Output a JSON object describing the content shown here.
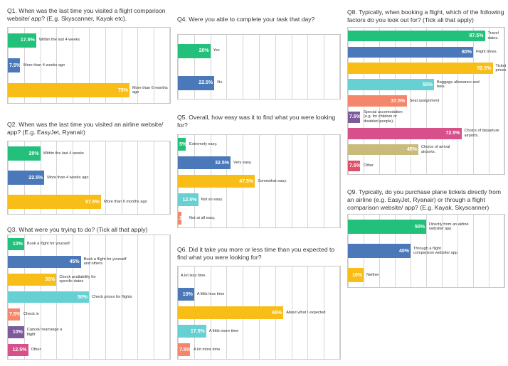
{
  "chart_data": [
    {
      "type": "bar",
      "orientation": "horizontal",
      "title": "Q1. When was the last time you visited a flight comparison website/ app? (E.g. Skyscanner, Kayak etc).",
      "categories": [
        "Within the last 4 weeks",
        "More than 4 weeks ago",
        "More than 6 months ago"
      ],
      "values": [
        17.5,
        7.5,
        75
      ],
      "value_labels": [
        "17.5%",
        "7.5%",
        "75%"
      ],
      "colors": [
        "#22c07a",
        "#4a78b8",
        "#f8bd17"
      ],
      "xlim": [
        0,
        100
      ],
      "xticks": [
        0,
        10,
        20,
        30,
        40,
        50,
        60,
        70,
        80,
        90,
        100
      ],
      "grid": true
    },
    {
      "type": "bar",
      "orientation": "horizontal",
      "title": "Q2. When was the last time you visited an airline website/ app? (E.g. EasyJet, Ryanair)",
      "categories": [
        "Within the last 4 weeks",
        "More than 4 weeks ago",
        "More than 6 months ago"
      ],
      "values": [
        20,
        22.5,
        57.5
      ],
      "value_labels": [
        "20%",
        "22.5%",
        "57.5%"
      ],
      "colors": [
        "#22c07a",
        "#4a78b8",
        "#f8bd17"
      ],
      "xlim": [
        0,
        100
      ],
      "xticks": [
        0,
        10,
        20,
        30,
        40,
        50,
        60,
        70,
        80,
        90,
        100
      ],
      "grid": true
    },
    {
      "type": "bar",
      "orientation": "horizontal",
      "title": "Q3. What were you trying to do? (Tick all that apply)",
      "categories": [
        "Book a flight for yourself",
        "Book a flight for yourself and others",
        "Check availability for specific dates",
        "Check prices for flights",
        "Check in",
        "Cancel/ rearrange a flight",
        "Other"
      ],
      "values": [
        10,
        45,
        30,
        50,
        7.5,
        10,
        12.5
      ],
      "value_labels": [
        "10%",
        "45%",
        "30%",
        "50%",
        "7.5%",
        "10%",
        "12.5%"
      ],
      "colors": [
        "#22c07a",
        "#4a78b8",
        "#f8bd17",
        "#66d0d2",
        "#f4876b",
        "#7d5a9a",
        "#d7508a"
      ],
      "xlim": [
        0,
        100
      ],
      "xticks": [
        0,
        10,
        20,
        30,
        40,
        50,
        60,
        70,
        80,
        90,
        100
      ],
      "grid": true
    },
    {
      "type": "bar",
      "orientation": "horizontal",
      "title": "Q4. Were you able to complete your task that day?",
      "categories": [
        "Yes",
        "No"
      ],
      "values": [
        20,
        22.5
      ],
      "value_labels": [
        "20%",
        "22.5%"
      ],
      "colors": [
        "#22c07a",
        "#4a78b8"
      ],
      "xlim": [
        0,
        100
      ],
      "xticks": [
        0,
        10,
        20,
        30,
        40,
        50,
        60,
        70,
        80,
        90,
        100
      ],
      "grid": true
    },
    {
      "type": "bar",
      "orientation": "horizontal",
      "title": "Q5. Overall, how easy was it to find what you were looking for?",
      "categories": [
        "Extremely easy.",
        "Very easy.",
        "Somewhat easy.",
        "Not so easy.",
        "Not at all easy."
      ],
      "values": [
        5,
        32.5,
        47.5,
        12.5,
        2
      ],
      "value_labels": [
        "5%",
        "32.5%",
        "47.5%",
        "12.5%",
        "2%"
      ],
      "colors": [
        "#22c07a",
        "#4a78b8",
        "#f8bd17",
        "#66d0d2",
        "#f4876b"
      ],
      "xlim": [
        0,
        100
      ],
      "xticks": [
        0,
        10,
        20,
        30,
        40,
        50,
        60,
        70,
        80,
        90,
        100
      ],
      "grid": true
    },
    {
      "type": "bar",
      "orientation": "horizontal",
      "title": "Q6. Did it take you more or less time than you expected to find what you were looking for?",
      "categories": [
        "A lot less time.",
        "A little less time",
        "About what I expected",
        "A little more time",
        "A lot more time"
      ],
      "values": [
        0,
        10,
        65,
        17.5,
        7.5
      ],
      "value_labels": [
        null,
        "10%",
        "65%",
        "17.5%",
        "7.5%"
      ],
      "colors": [
        "#22c07a",
        "#4a78b8",
        "#f8bd17",
        "#66d0d2",
        "#f4876b"
      ],
      "xlim": [
        0,
        100
      ],
      "xticks": [
        0,
        10,
        20,
        30,
        40,
        50,
        60,
        70,
        80,
        90,
        100
      ],
      "grid": true
    },
    {
      "type": "bar",
      "orientation": "horizontal",
      "title": "Q8. Typically, when booking a flight, which of the following factors do you look out for? (Tick all that apply)",
      "categories": [
        "Travel dates.",
        "Flight times.",
        "Ticket prices",
        "Baggage allowance and fees.",
        "Seat assignment",
        "Special accomodation (e.g. for children or disabled people).",
        "Choice of departure airports.",
        "Choice of arrival airports.",
        "Other"
      ],
      "values": [
        87.5,
        80,
        92.5,
        55,
        37.5,
        7.5,
        72.5,
        45,
        7.5
      ],
      "value_labels": [
        "87.5%",
        "80%",
        "92.5%",
        "55%",
        "37.5%",
        "7.5%",
        "72.5%",
        "45%",
        "7.5%"
      ],
      "colors": [
        "#22c07a",
        "#4a78b8",
        "#f8bd17",
        "#66d0d2",
        "#f4876b",
        "#7d5a9a",
        "#d7508a",
        "#c9bb7c",
        "#e0506a"
      ],
      "xlim": [
        0,
        100
      ],
      "xticks": [
        0,
        10,
        20,
        30,
        40,
        50,
        60,
        70,
        80,
        90,
        100
      ],
      "grid": true
    },
    {
      "type": "bar",
      "orientation": "horizontal",
      "title": "Q9. Typically, do you purchase plane tickets directly from an airline (e.g. EasyJet, Ryanair) or through a flight comparison website/ app? (E.g. Kayak, Skyscanner)",
      "categories": [
        "Directly from an airline website/ app",
        "Through a flight comparison website/ app",
        "Neither"
      ],
      "values": [
        50,
        40,
        10
      ],
      "value_labels": [
        "50%",
        "40%",
        "10%"
      ],
      "colors": [
        "#22c07a",
        "#4a78b8",
        "#f8bd17"
      ],
      "xlim": [
        0,
        100
      ],
      "xticks": [
        0,
        10,
        20,
        30,
        40,
        50,
        60,
        70,
        80,
        90,
        100
      ],
      "grid": true
    }
  ]
}
